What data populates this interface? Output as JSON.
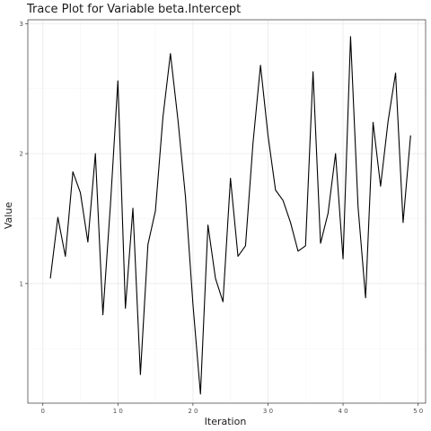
{
  "chart_data": {
    "type": "line",
    "title": "Trace Plot for Variable beta.Intercept",
    "xlabel": "Iteration",
    "ylabel": "Value",
    "xlim": [
      -2,
      51
    ],
    "ylim": [
      0.08,
      3.03
    ],
    "x_ticks": [
      0,
      10,
      20,
      30,
      40,
      50
    ],
    "x_tick_labels": [
      "0",
      "1 0",
      "2 0",
      "3 0",
      "4 0",
      "5 0"
    ],
    "y_ticks": [
      1,
      2,
      3
    ],
    "y_tick_labels": [
      "1",
      "2",
      "3"
    ],
    "grid": true,
    "series": [
      {
        "color": "#000000",
        "x": [
          1,
          2,
          3,
          4,
          5,
          6,
          7,
          8,
          9,
          10,
          11,
          12,
          13,
          14,
          15,
          16,
          17,
          18,
          19,
          20,
          21,
          22,
          23,
          24,
          25,
          26,
          27,
          28,
          29,
          30,
          31,
          32,
          33,
          34,
          35,
          36,
          37,
          38,
          39,
          40,
          41,
          42,
          43,
          44,
          45,
          46,
          47,
          48,
          49
        ],
        "y": [
          1.04,
          1.51,
          1.21,
          1.86,
          1.7,
          1.32,
          2.0,
          0.76,
          1.6,
          2.56,
          0.81,
          1.58,
          0.3,
          1.3,
          1.56,
          2.28,
          2.77,
          2.26,
          1.67,
          0.84,
          0.15,
          1.45,
          1.04,
          0.86,
          1.81,
          1.21,
          1.29,
          2.08,
          2.68,
          2.14,
          1.72,
          1.64,
          1.47,
          1.25,
          1.29,
          2.63,
          1.31,
          1.54,
          2.0,
          1.19,
          2.9,
          1.59,
          0.89,
          2.24,
          1.75,
          2.25,
          2.62,
          1.47,
          2.14
        ]
      }
    ]
  }
}
